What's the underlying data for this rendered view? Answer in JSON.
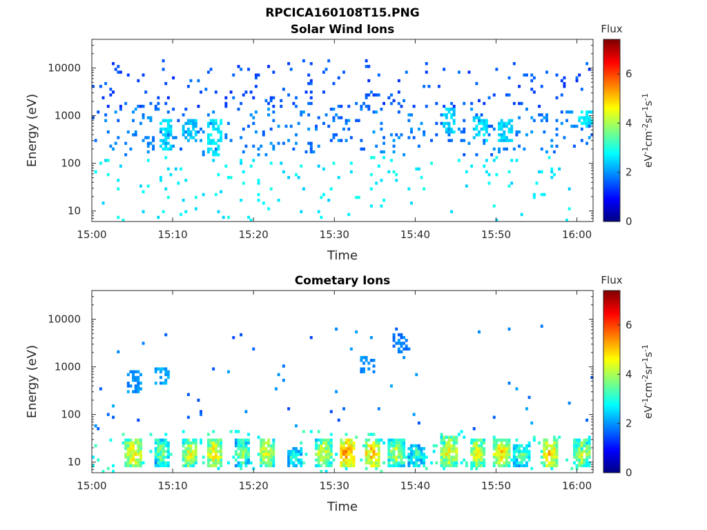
{
  "figure_title": "RPCICA160108T15.PNG",
  "colors": {
    "jet": [
      "#00007f",
      "#0000ff",
      "#007fff",
      "#00ffff",
      "#7fff7f",
      "#ffff00",
      "#ff7f00",
      "#ff0000",
      "#7f0000"
    ],
    "axis": "#262626",
    "background": "#ffffff"
  },
  "chart_data": [
    {
      "type": "heatmap",
      "title": "Solar Wind Ions",
      "xlabel": "Time",
      "ylabel": "Energy (eV)",
      "xticks": [
        "15:00",
        "15:10",
        "15:20",
        "15:30",
        "15:40",
        "15:50",
        "16:00"
      ],
      "xlim_minutes": [
        0,
        62
      ],
      "yscale": "log",
      "yticks": [
        "10",
        "100",
        "1000",
        "10000"
      ],
      "ylim": [
        6,
        40000
      ],
      "colorbar": {
        "title": "Flux",
        "label": "eV-1cm-2sr-1s-1",
        "ticks": [
          "0",
          "2",
          "4",
          "6"
        ],
        "range": [
          0,
          7.4
        ]
      },
      "flux_range_observed": [
        1.0,
        3.2
      ],
      "features": [
        {
          "time": "15:09",
          "energy_range": [
            200,
            800
          ],
          "flux": 2.8
        },
        {
          "time": "15:12",
          "energy_range": [
            300,
            800
          ],
          "flux": 2.6
        },
        {
          "time": "15:15",
          "energy_range": [
            150,
            900
          ],
          "flux": 2.9
        },
        {
          "time": "15:44",
          "energy_range": [
            400,
            1500
          ],
          "flux": 2.7
        },
        {
          "time": "15:48",
          "energy_range": [
            300,
            1000
          ],
          "flux": 2.8
        },
        {
          "time": "15:51",
          "energy_range": [
            300,
            800
          ],
          "flux": 2.7
        },
        {
          "time": "16:01",
          "energy_range": [
            600,
            1300
          ],
          "flux": 2.9
        }
      ]
    },
    {
      "type": "heatmap",
      "title": "Cometary Ions",
      "xlabel": "Time",
      "ylabel": "Energy (eV)",
      "xticks": [
        "15:00",
        "15:10",
        "15:20",
        "15:30",
        "15:40",
        "15:50",
        "16:00"
      ],
      "xlim_minutes": [
        0,
        62
      ],
      "yscale": "log",
      "yticks": [
        "10",
        "100",
        "1000",
        "10000"
      ],
      "ylim": [
        6,
        40000
      ],
      "colorbar": {
        "title": "Flux",
        "label": "eV-1cm-2sr-1s-1",
        "ticks": [
          "0",
          "2",
          "4",
          "6"
        ],
        "range": [
          0,
          7.4
        ]
      },
      "flux_range_observed": [
        1.0,
        6.2
      ],
      "bursts": [
        {
          "time": "15:05",
          "energy_range": [
            8,
            30
          ],
          "peak_flux": 5.5
        },
        {
          "time": "15:08.5",
          "energy_range": [
            8,
            30
          ],
          "peak_flux": 4.5
        },
        {
          "time": "15:12",
          "energy_range": [
            8,
            30
          ],
          "peak_flux": 5.2
        },
        {
          "time": "15:15",
          "energy_range": [
            8,
            30
          ],
          "peak_flux": 5.5
        },
        {
          "time": "15:18.5",
          "energy_range": [
            8,
            30
          ],
          "peak_flux": 4.5
        },
        {
          "time": "15:21.5",
          "energy_range": [
            8,
            30
          ],
          "peak_flux": 5.3
        },
        {
          "time": "15:25",
          "energy_range": [
            8,
            20
          ],
          "peak_flux": 4.0
        },
        {
          "time": "15:28.5",
          "energy_range": [
            8,
            30
          ],
          "peak_flux": 5.2
        },
        {
          "time": "15:31.5",
          "energy_range": [
            8,
            30
          ],
          "peak_flux": 6.2
        },
        {
          "time": "15:34.5",
          "energy_range": [
            8,
            30
          ],
          "peak_flux": 5.8
        },
        {
          "time": "15:37.5",
          "energy_range": [
            8,
            30
          ],
          "peak_flux": 5.0
        },
        {
          "time": "15:40",
          "energy_range": [
            8,
            25
          ],
          "peak_flux": 4.0
        },
        {
          "time": "15:44",
          "energy_range": [
            8,
            35
          ],
          "peak_flux": 5.5
        },
        {
          "time": "15:47.5",
          "energy_range": [
            8,
            30
          ],
          "peak_flux": 5.3
        },
        {
          "time": "15:50.5",
          "energy_range": [
            8,
            30
          ],
          "peak_flux": 5.6
        },
        {
          "time": "15:53",
          "energy_range": [
            8,
            25
          ],
          "peak_flux": 4.2
        },
        {
          "time": "15:56.5",
          "energy_range": [
            8,
            30
          ],
          "peak_flux": 5.8
        },
        {
          "time": "16:00.5",
          "energy_range": [
            8,
            30
          ],
          "peak_flux": 5.0
        }
      ],
      "features": [
        {
          "time": "15:05",
          "energy_range": [
            300,
            800
          ],
          "flux": 2.2
        },
        {
          "time": "15:08.5",
          "energy_range": [
            400,
            1000
          ],
          "flux": 2.4
        },
        {
          "time": "15:34",
          "energy_range": [
            700,
            1600
          ],
          "flux": 2.2
        },
        {
          "time": "15:38",
          "energy_range": [
            2000,
            5000
          ],
          "flux": 2.0
        }
      ]
    }
  ]
}
